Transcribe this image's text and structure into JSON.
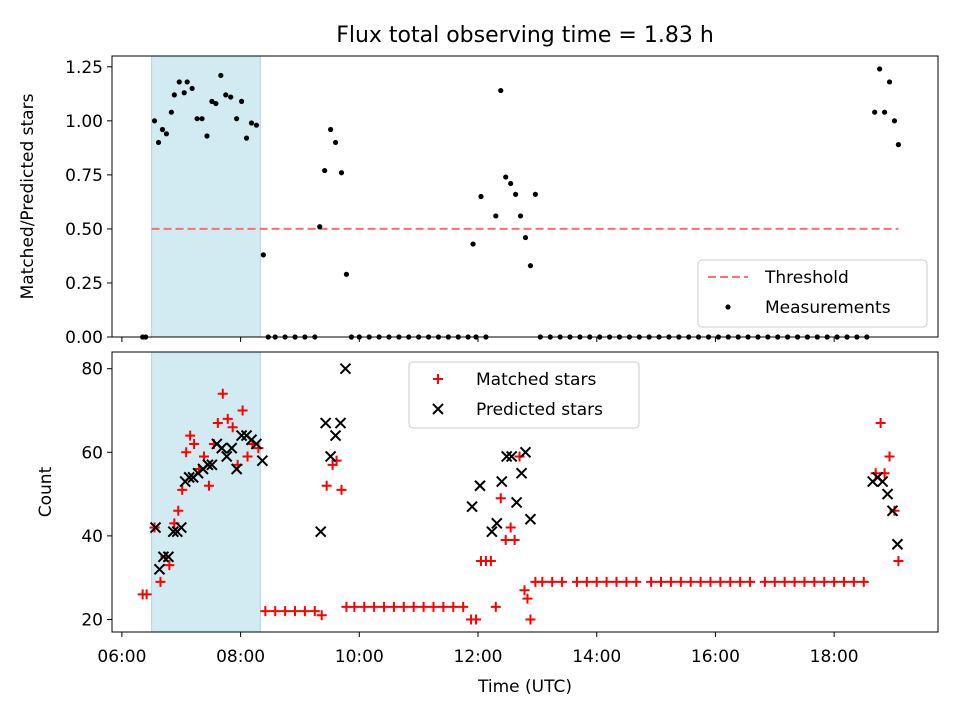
{
  "title": "Flux total observing time = 1.83 h",
  "chart_data": [
    {
      "type": "scatter",
      "panel": "top",
      "ylabel": "Matched/Predicted stars",
      "xlabel": "",
      "xlim": [
        "05:50",
        "19:45"
      ],
      "ylim": [
        0,
        1.3
      ],
      "yticks": [
        0.0,
        0.25,
        0.5,
        0.75,
        1.0,
        1.25
      ],
      "ytick_labels": [
        "0.00",
        "0.25",
        "0.50",
        "0.75",
        "1.00",
        "1.25"
      ],
      "xticks": [
        "06:00",
        "08:00",
        "10:00",
        "12:00",
        "14:00",
        "16:00",
        "18:00"
      ],
      "shaded_span": [
        "06:30",
        "08:20"
      ],
      "shaded_color": "#add8e6",
      "legend_position": "lower right",
      "threshold": {
        "name": "Threshold",
        "value": 0.5,
        "x_range": [
          "06:30",
          "19:05"
        ],
        "color": "#ff6f6f",
        "style": "dashed"
      },
      "measurements": {
        "name": "Measurements",
        "color": "#000000",
        "points": [
          [
            "06:21",
            0.0
          ],
          [
            "06:24",
            0.0
          ],
          [
            "06:33",
            1.0
          ],
          [
            "06:37",
            0.9
          ],
          [
            "06:41",
            0.96
          ],
          [
            "06:45",
            0.94
          ],
          [
            "06:50",
            1.04
          ],
          [
            "06:53",
            1.12
          ],
          [
            "06:58",
            1.18
          ],
          [
            "07:03",
            1.13
          ],
          [
            "07:06",
            1.18
          ],
          [
            "07:11",
            1.15
          ],
          [
            "07:16",
            1.01
          ],
          [
            "07:21",
            1.01
          ],
          [
            "07:26",
            0.93
          ],
          [
            "07:31",
            1.09
          ],
          [
            "07:35",
            1.08
          ],
          [
            "07:40",
            1.21
          ],
          [
            "07:45",
            1.12
          ],
          [
            "07:50",
            1.11
          ],
          [
            "07:56",
            1.01
          ],
          [
            "08:01",
            1.09
          ],
          [
            "08:06",
            0.92
          ],
          [
            "08:11",
            0.99
          ],
          [
            "08:16",
            0.98
          ],
          [
            "08:23",
            0.38
          ],
          [
            "08:28",
            0.0
          ],
          [
            "08:35",
            0.0
          ],
          [
            "08:45",
            0.0
          ],
          [
            "08:55",
            0.0
          ],
          [
            "09:05",
            0.0
          ],
          [
            "09:15",
            0.0
          ],
          [
            "09:20",
            0.51
          ],
          [
            "09:25",
            0.77
          ],
          [
            "09:31",
            0.96
          ],
          [
            "09:36",
            0.9
          ],
          [
            "09:42",
            0.76
          ],
          [
            "09:47",
            0.29
          ],
          [
            "09:52",
            0.0
          ],
          [
            "10:00",
            0.0
          ],
          [
            "10:10",
            0.0
          ],
          [
            "10:20",
            0.0
          ],
          [
            "10:30",
            0.0
          ],
          [
            "10:40",
            0.0
          ],
          [
            "10:50",
            0.0
          ],
          [
            "11:00",
            0.0
          ],
          [
            "11:10",
            0.0
          ],
          [
            "11:20",
            0.0
          ],
          [
            "11:30",
            0.0
          ],
          [
            "11:40",
            0.0
          ],
          [
            "11:50",
            0.0
          ],
          [
            "11:55",
            0.43
          ],
          [
            "11:58",
            0.0
          ],
          [
            "12:03",
            0.65
          ],
          [
            "12:08",
            0.0
          ],
          [
            "12:18",
            0.56
          ],
          [
            "12:23",
            1.14
          ],
          [
            "12:28",
            0.74
          ],
          [
            "12:33",
            0.71
          ],
          [
            "12:38",
            0.66
          ],
          [
            "12:43",
            0.56
          ],
          [
            "12:48",
            0.46
          ],
          [
            "12:53",
            0.33
          ],
          [
            "12:58",
            0.66
          ],
          [
            "13:03",
            0.0
          ],
          [
            "13:13",
            0.0
          ],
          [
            "13:23",
            0.0
          ],
          [
            "13:33",
            0.0
          ],
          [
            "13:43",
            0.0
          ],
          [
            "13:53",
            0.0
          ],
          [
            "14:03",
            0.0
          ],
          [
            "14:13",
            0.0
          ],
          [
            "14:23",
            0.0
          ],
          [
            "14:33",
            0.0
          ],
          [
            "14:43",
            0.0
          ],
          [
            "14:53",
            0.0
          ],
          [
            "15:03",
            0.0
          ],
          [
            "15:13",
            0.0
          ],
          [
            "15:23",
            0.0
          ],
          [
            "15:33",
            0.0
          ],
          [
            "15:43",
            0.0
          ],
          [
            "15:53",
            0.0
          ],
          [
            "16:03",
            0.0
          ],
          [
            "16:13",
            0.0
          ],
          [
            "16:23",
            0.0
          ],
          [
            "16:33",
            0.0
          ],
          [
            "16:43",
            0.0
          ],
          [
            "16:53",
            0.0
          ],
          [
            "17:03",
            0.0
          ],
          [
            "17:13",
            0.0
          ],
          [
            "17:23",
            0.0
          ],
          [
            "17:33",
            0.0
          ],
          [
            "17:43",
            0.0
          ],
          [
            "17:53",
            0.0
          ],
          [
            "18:03",
            0.0
          ],
          [
            "18:13",
            0.0
          ],
          [
            "18:23",
            0.0
          ],
          [
            "18:33",
            0.0
          ],
          [
            "18:41",
            1.04
          ],
          [
            "18:46",
            1.24
          ],
          [
            "18:51",
            1.04
          ],
          [
            "18:56",
            1.18
          ],
          [
            "19:01",
            1.0
          ],
          [
            "19:05",
            0.89
          ]
        ]
      }
    },
    {
      "type": "scatter",
      "panel": "bottom",
      "ylabel": "Count",
      "xlabel": "Time (UTC)",
      "xlim": [
        "05:50",
        "19:45"
      ],
      "ylim": [
        17,
        84
      ],
      "yticks": [
        20,
        40,
        60,
        80
      ],
      "xticks": [
        "06:00",
        "08:00",
        "10:00",
        "12:00",
        "14:00",
        "16:00",
        "18:00"
      ],
      "shaded_span": [
        "06:30",
        "08:20"
      ],
      "shaded_color": "#add8e6",
      "legend_position": "upper center",
      "series": [
        {
          "name": "Matched stars",
          "marker": "+",
          "color": "#ff0000",
          "points": [
            [
              "06:21",
              26
            ],
            [
              "06:25",
              26
            ],
            [
              "06:33",
              42
            ],
            [
              "06:39",
              29
            ],
            [
              "06:44",
              35
            ],
            [
              "06:48",
              33
            ],
            [
              "06:53",
              43
            ],
            [
              "06:57",
              46
            ],
            [
              "07:01",
              51
            ],
            [
              "07:05",
              60
            ],
            [
              "07:09",
              64
            ],
            [
              "07:13",
              62
            ],
            [
              "07:18",
              56
            ],
            [
              "07:23",
              59
            ],
            [
              "07:28",
              52
            ],
            [
              "07:33",
              62
            ],
            [
              "07:37",
              67
            ],
            [
              "07:42",
              74
            ],
            [
              "07:47",
              68
            ],
            [
              "07:52",
              66
            ],
            [
              "07:57",
              57
            ],
            [
              "08:02",
              70
            ],
            [
              "08:07",
              59
            ],
            [
              "08:12",
              62
            ],
            [
              "08:18",
              61
            ],
            [
              "08:25",
              22
            ],
            [
              "08:35",
              22
            ],
            [
              "08:45",
              22
            ],
            [
              "08:55",
              22
            ],
            [
              "09:05",
              22
            ],
            [
              "09:15",
              22
            ],
            [
              "09:22",
              21
            ],
            [
              "09:27",
              52
            ],
            [
              "09:33",
              57
            ],
            [
              "09:37",
              58
            ],
            [
              "09:42",
              51
            ],
            [
              "09:47",
              23
            ],
            [
              "09:55",
              23
            ],
            [
              "10:05",
              23
            ],
            [
              "10:15",
              23
            ],
            [
              "10:25",
              23
            ],
            [
              "10:35",
              23
            ],
            [
              "10:45",
              23
            ],
            [
              "10:55",
              23
            ],
            [
              "11:05",
              23
            ],
            [
              "11:15",
              23
            ],
            [
              "11:25",
              23
            ],
            [
              "11:35",
              23
            ],
            [
              "11:45",
              23
            ],
            [
              "11:53",
              20
            ],
            [
              "11:58",
              20
            ],
            [
              "12:03",
              34
            ],
            [
              "12:08",
              34
            ],
            [
              "12:13",
              34
            ],
            [
              "12:18",
              23
            ],
            [
              "12:23",
              49
            ],
            [
              "12:28",
              39
            ],
            [
              "12:33",
              42
            ],
            [
              "12:37",
              39
            ],
            [
              "12:42",
              59
            ],
            [
              "12:47",
              27
            ],
            [
              "12:50",
              25
            ],
            [
              "12:53",
              20
            ],
            [
              "12:58",
              29
            ],
            [
              "13:05",
              29
            ],
            [
              "13:15",
              29
            ],
            [
              "13:25",
              29
            ],
            [
              "13:40",
              29
            ],
            [
              "13:50",
              29
            ],
            [
              "14:00",
              29
            ],
            [
              "14:10",
              29
            ],
            [
              "14:20",
              29
            ],
            [
              "14:30",
              29
            ],
            [
              "14:40",
              29
            ],
            [
              "14:55",
              29
            ],
            [
              "15:05",
              29
            ],
            [
              "15:15",
              29
            ],
            [
              "15:25",
              29
            ],
            [
              "15:35",
              29
            ],
            [
              "15:45",
              29
            ],
            [
              "15:55",
              29
            ],
            [
              "16:05",
              29
            ],
            [
              "16:15",
              29
            ],
            [
              "16:25",
              29
            ],
            [
              "16:35",
              29
            ],
            [
              "16:50",
              29
            ],
            [
              "17:00",
              29
            ],
            [
              "17:10",
              29
            ],
            [
              "17:20",
              29
            ],
            [
              "17:30",
              29
            ],
            [
              "17:40",
              29
            ],
            [
              "17:50",
              29
            ],
            [
              "18:00",
              29
            ],
            [
              "18:10",
              29
            ],
            [
              "18:20",
              29
            ],
            [
              "18:30",
              29
            ],
            [
              "18:42",
              55
            ],
            [
              "18:47",
              67
            ],
            [
              "18:51",
              55
            ],
            [
              "18:56",
              59
            ],
            [
              "19:01",
              46
            ],
            [
              "19:05",
              34
            ]
          ]
        },
        {
          "name": "Predicted stars",
          "marker": "x",
          "color": "#000000",
          "points": [
            [
              "06:34",
              42
            ],
            [
              "06:38",
              32
            ],
            [
              "06:42",
              35
            ],
            [
              "06:47",
              35
            ],
            [
              "06:52",
              41
            ],
            [
              "06:56",
              41
            ],
            [
              "07:00",
              42
            ],
            [
              "07:04",
              53
            ],
            [
              "07:08",
              54
            ],
            [
              "07:12",
              54
            ],
            [
              "07:17",
              55
            ],
            [
              "07:22",
              56
            ],
            [
              "07:27",
              57
            ],
            [
              "07:31",
              57
            ],
            [
              "07:36",
              62
            ],
            [
              "07:41",
              61
            ],
            [
              "07:46",
              59
            ],
            [
              "07:51",
              61
            ],
            [
              "07:56",
              56
            ],
            [
              "08:01",
              64
            ],
            [
              "08:06",
              64
            ],
            [
              "08:11",
              63
            ],
            [
              "08:16",
              62
            ],
            [
              "08:22",
              58
            ],
            [
              "09:21",
              41
            ],
            [
              "09:26",
              67
            ],
            [
              "09:31",
              59
            ],
            [
              "09:36",
              64
            ],
            [
              "09:41",
              67
            ],
            [
              "09:46",
              80
            ],
            [
              "11:54",
              47
            ],
            [
              "12:02",
              52
            ],
            [
              "12:14",
              41
            ],
            [
              "12:19",
              43
            ],
            [
              "12:24",
              53
            ],
            [
              "12:29",
              59
            ],
            [
              "12:34",
              59
            ],
            [
              "12:39",
              48
            ],
            [
              "12:44",
              55
            ],
            [
              "12:48",
              60
            ],
            [
              "12:53",
              44
            ],
            [
              "18:39",
              53
            ],
            [
              "18:44",
              54
            ],
            [
              "18:49",
              53
            ],
            [
              "18:54",
              50
            ],
            [
              "18:59",
              46
            ],
            [
              "19:04",
              38
            ]
          ]
        }
      ]
    }
  ]
}
